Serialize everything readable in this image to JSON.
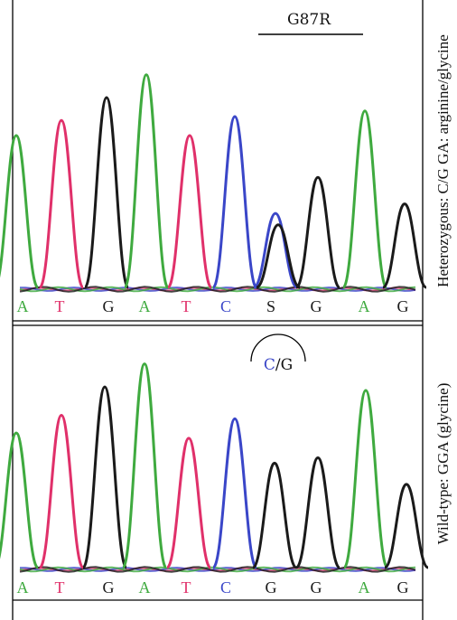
{
  "colors": {
    "A": "#3faa3f",
    "T": "#e0306a",
    "G": "#1a1a1a",
    "C": "#3a46c8",
    "S": "#1a1a1a",
    "frame": "#000000"
  },
  "panels": [
    {
      "id": "heterozygous",
      "side_label": "Heterozygous: C/G GA: arginine/glycine",
      "mutation_label": "G87R",
      "bases": [
        "A",
        "T",
        "G",
        "A",
        "T",
        "C",
        "S",
        "G",
        "A",
        "G"
      ],
      "peaks": [
        {
          "base": "A",
          "h": 0.8
        },
        {
          "base": "T",
          "h": 0.88
        },
        {
          "base": "G",
          "h": 1.0
        },
        {
          "base": "A",
          "h": 1.12
        },
        {
          "base": "T",
          "h": 0.8
        },
        {
          "base": "C",
          "h": 0.9
        },
        {
          "base": "C",
          "h": 0.39
        },
        {
          "base": "G",
          "h": 0.33
        },
        {
          "base": "G",
          "h": 0.58
        },
        {
          "base": "A",
          "h": 0.93
        },
        {
          "base": "G",
          "h": 0.44
        }
      ]
    },
    {
      "id": "wildtype",
      "side_label": "Wild-type: GGA (glycine)",
      "annotation": {
        "c": "C",
        "rest": "/G"
      },
      "bases": [
        "A",
        "T",
        "G",
        "A",
        "T",
        "C",
        "G",
        "G",
        "A",
        "G"
      ],
      "peaks": [
        {
          "base": "A",
          "h": 0.76
        },
        {
          "base": "T",
          "h": 0.86
        },
        {
          "base": "G",
          "h": 1.02
        },
        {
          "base": "A",
          "h": 1.15
        },
        {
          "base": "T",
          "h": 0.73
        },
        {
          "base": "C",
          "h": 0.84
        },
        {
          "base": "G",
          "h": 0.59
        },
        {
          "base": "G",
          "h": 0.62
        },
        {
          "base": "A",
          "h": 1.0
        },
        {
          "base": "G",
          "h": 0.47
        }
      ]
    }
  ]
}
